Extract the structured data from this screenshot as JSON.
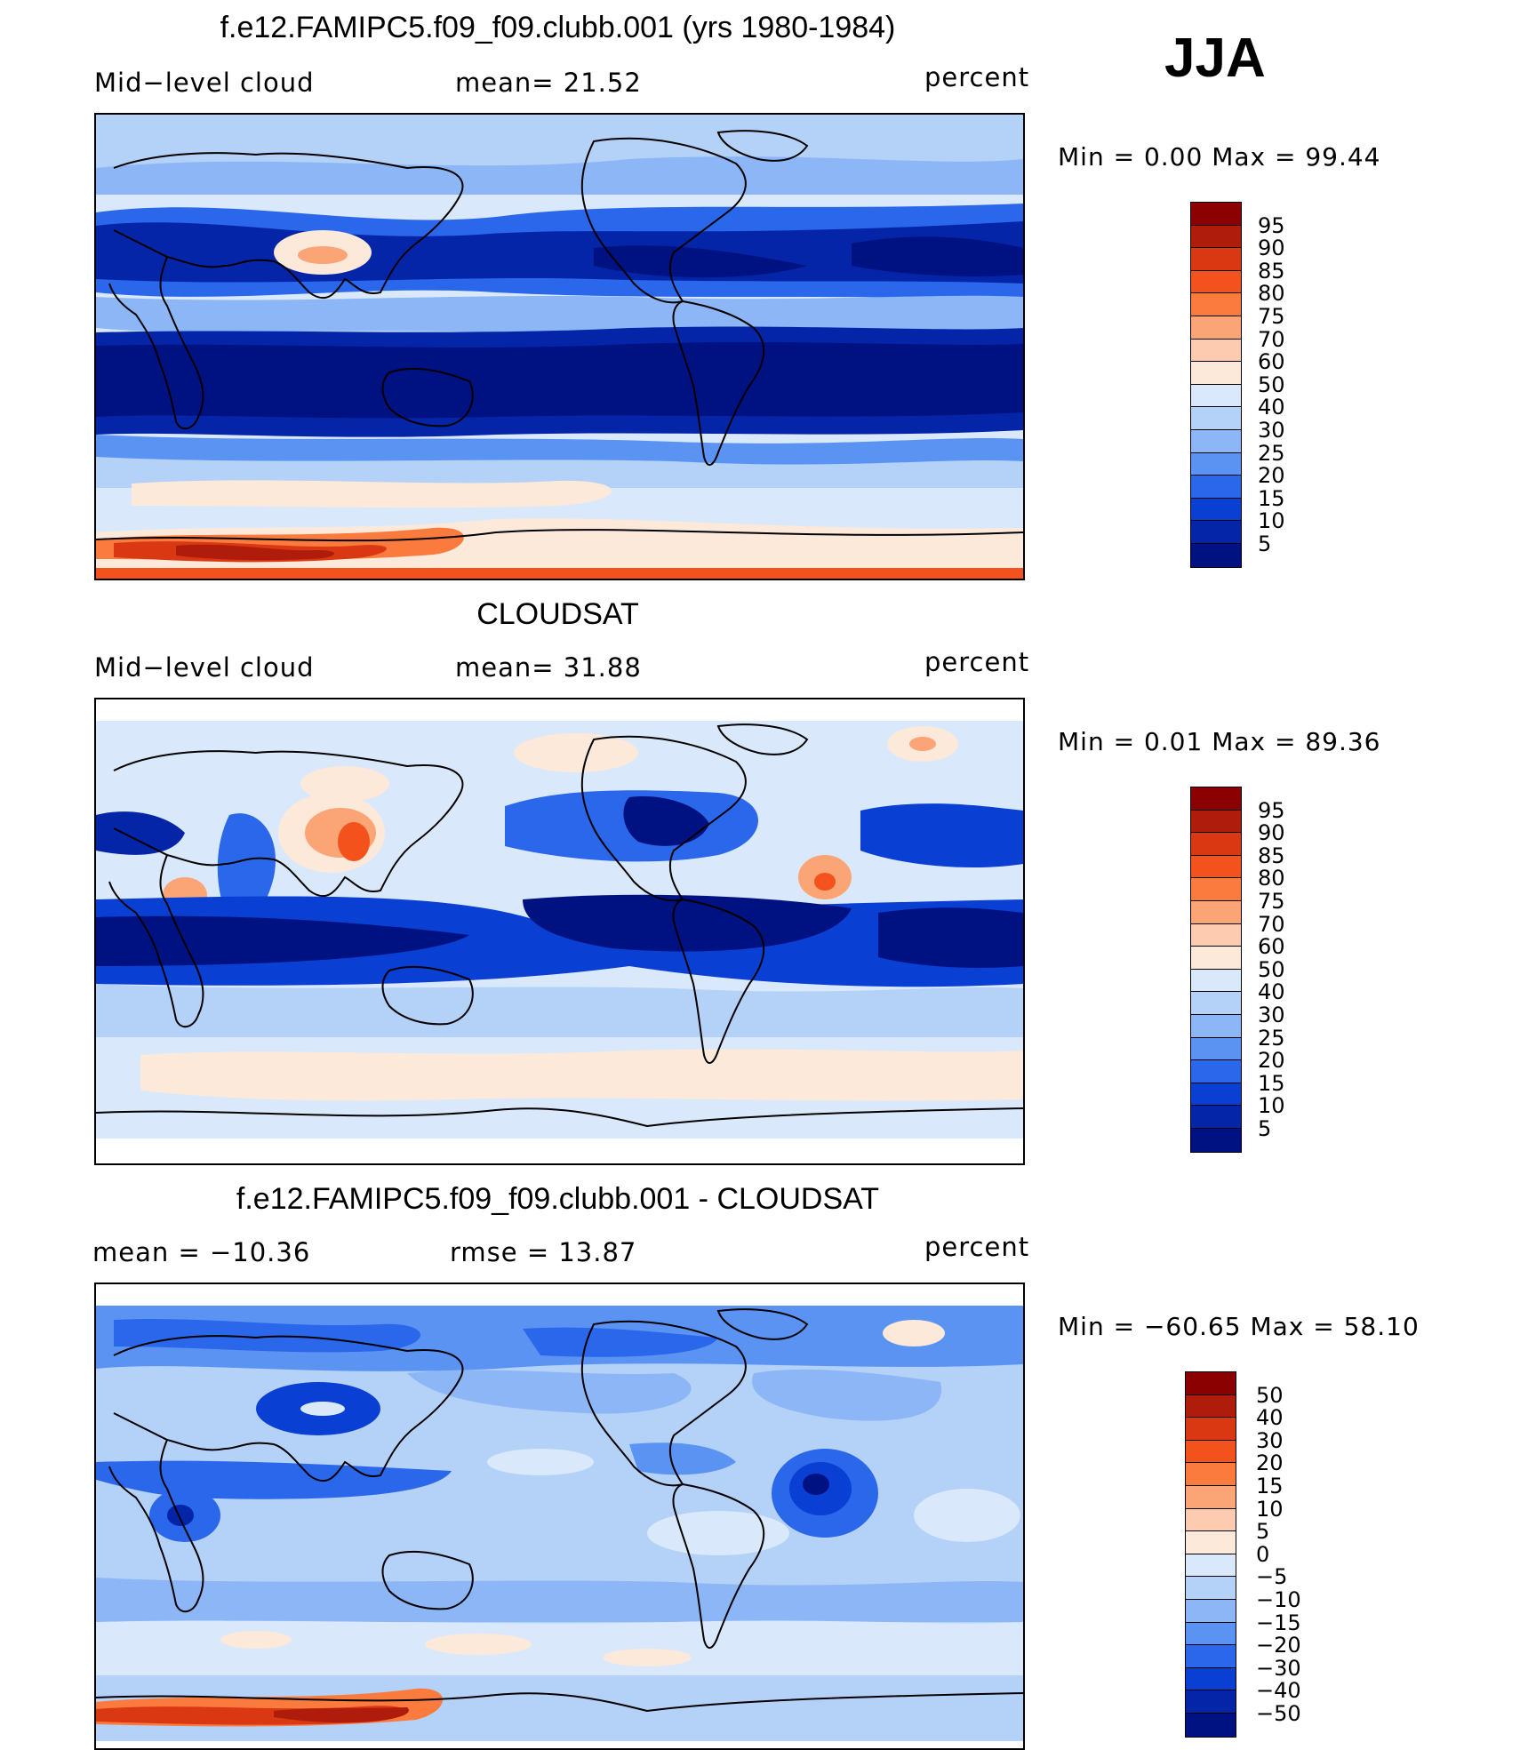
{
  "season": "JJA",
  "panels": [
    {
      "title": "f.e12.FAMIPC5.f09_f09.clubb.001 (yrs 1980-1984)",
      "left_label": "Mid−level cloud",
      "center_label": "mean=   21.52",
      "right_label": "percent",
      "minmax": "Min  =     0.00  Max  =    99.44",
      "colorbar": {
        "labels": [
          "95",
          "90",
          "85",
          "80",
          "75",
          "70",
          "60",
          "50",
          "40",
          "30",
          "25",
          "20",
          "15",
          "10",
          "5"
        ],
        "colors": [
          "#8b0000",
          "#b01c0c",
          "#d93812",
          "#f4521c",
          "#fb7a3e",
          "#fba476",
          "#fdcbb0",
          "#fde9da",
          "#d9e9fb",
          "#b4d1f8",
          "#8cb6f6",
          "#5b93f3",
          "#2a67ea",
          "#0a3fd4",
          "#0525a8",
          "#001282"
        ]
      }
    },
    {
      "title": "CLOUDSAT",
      "left_label": "Mid−level cloud",
      "center_label": "mean=   31.88",
      "right_label": "percent",
      "minmax": "Min  =     0.01  Max  =    89.36",
      "colorbar": {
        "labels": [
          "95",
          "90",
          "85",
          "80",
          "75",
          "70",
          "60",
          "50",
          "40",
          "30",
          "25",
          "20",
          "15",
          "10",
          "5"
        ],
        "colors": [
          "#8b0000",
          "#b01c0c",
          "#d93812",
          "#f4521c",
          "#fb7a3e",
          "#fba476",
          "#fdcbb0",
          "#fde9da",
          "#d9e9fb",
          "#b4d1f8",
          "#8cb6f6",
          "#5b93f3",
          "#2a67ea",
          "#0a3fd4",
          "#0525a8",
          "#001282"
        ]
      }
    },
    {
      "title": "f.e12.FAMIPC5.f09_f09.clubb.001 - CLOUDSAT",
      "left_label": "mean  =  −10.36",
      "center_label": "rmse  =    13.87",
      "right_label": "percent",
      "minmax": "Min  = −60.65  Max  =    58.10",
      "colorbar": {
        "labels": [
          "50",
          "40",
          "30",
          "20",
          "15",
          "10",
          "5",
          "0",
          "−5",
          "−10",
          "−15",
          "−20",
          "−30",
          "−40",
          "−50"
        ],
        "colors": [
          "#8b0000",
          "#b01c0c",
          "#d93812",
          "#f4521c",
          "#fb7a3e",
          "#fba476",
          "#fdcbb0",
          "#fde9da",
          "#d9e9fb",
          "#b4d1f8",
          "#8cb6f6",
          "#5b93f3",
          "#2a67ea",
          "#0a3fd4",
          "#0525a8",
          "#001282"
        ]
      }
    }
  ]
}
